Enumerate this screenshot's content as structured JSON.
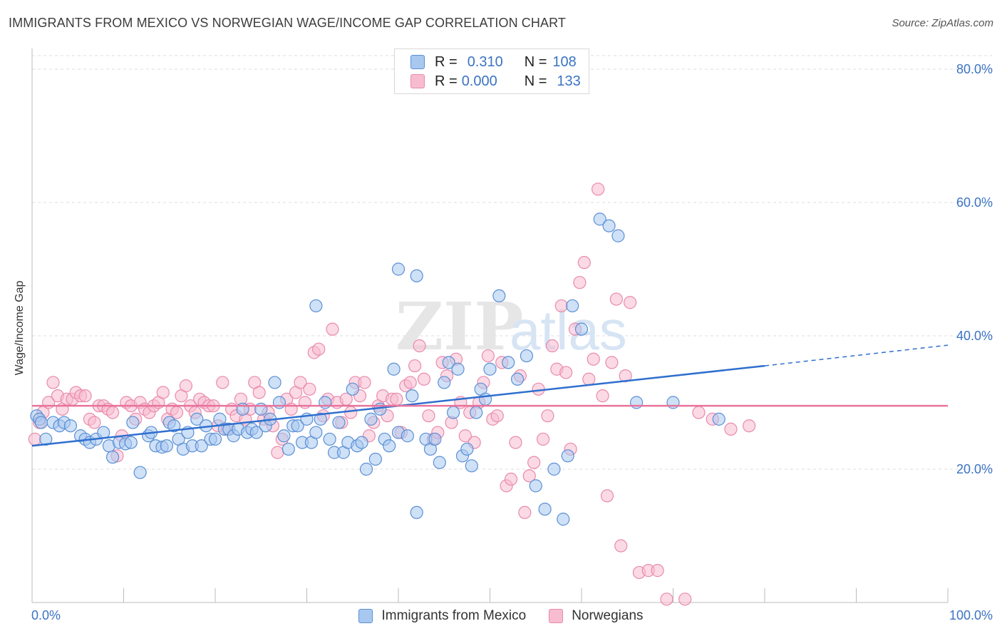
{
  "title": "IMMIGRANTS FROM MEXICO VS NORWEGIAN WAGE/INCOME GAP CORRELATION CHART",
  "source": "Source: ZipAtlas.com",
  "watermark": "ZIPatlas",
  "legend": {
    "rows": [
      {
        "r_label": "R =",
        "r_value": "0.310",
        "n_label": "N =",
        "n_value": "108"
      },
      {
        "r_label": "R =",
        "r_value": "0.000",
        "n_label": "N =",
        "n_value": "133"
      }
    ]
  },
  "bottom_legend": {
    "items": [
      "Immigrants from Mexico",
      "Norwegians"
    ]
  },
  "colors": {
    "blue_fill": "#a8c8f0",
    "blue_stroke": "#5b8fd4",
    "blue_line": "#2f6fcf",
    "pink_fill": "#f7bcd0",
    "pink_stroke": "#e98aac",
    "pink_line": "#e8739c",
    "grid": "#dcdcdc",
    "tick_label": "#3b73c4"
  },
  "chart_data": {
    "type": "scatter",
    "title": "IMMIGRANTS FROM MEXICO VS NORWEGIAN WAGE/INCOME GAP CORRELATION CHART",
    "xlabel": "",
    "ylabel": "Wage/Income Gap",
    "xlim": [
      0,
      100
    ],
    "ylim": [
      0,
      80
    ],
    "x_tick_labels": [
      "0.0%",
      "100.0%"
    ],
    "y_ticks": [
      20,
      40,
      60,
      80
    ],
    "y_tick_labels": [
      "20.0%",
      "40.0%",
      "60.0%",
      "80.0%"
    ],
    "grid": true,
    "legend_position": "top-center",
    "series": [
      {
        "name": "Immigrants from Mexico",
        "color": "#a8c8f0",
        "trend": {
          "x": [
            0,
            80
          ],
          "y": [
            23.5,
            35.5
          ],
          "dashed_to": [
            100,
            38.6
          ]
        },
        "points": [
          [
            0.5,
            28
          ],
          [
            0.8,
            27.5
          ],
          [
            1,
            27
          ],
          [
            1.5,
            24.5
          ],
          [
            2.3,
            27
          ],
          [
            3,
            26.5
          ],
          [
            3.5,
            27
          ],
          [
            4.2,
            26.5
          ],
          [
            5.3,
            25
          ],
          [
            5.8,
            24.5
          ],
          [
            6.3,
            24
          ],
          [
            7,
            24.5
          ],
          [
            7.8,
            25.5
          ],
          [
            8.4,
            23.5
          ],
          [
            8.8,
            21.8
          ],
          [
            9.5,
            24
          ],
          [
            10.2,
            23.8
          ],
          [
            10.8,
            24
          ],
          [
            11,
            27
          ],
          [
            11.8,
            19.5
          ],
          [
            12.7,
            25
          ],
          [
            13,
            25.5
          ],
          [
            13.5,
            23.5
          ],
          [
            14.2,
            23.3
          ],
          [
            14.7,
            23.5
          ],
          [
            15,
            27
          ],
          [
            15.5,
            26.5
          ],
          [
            16,
            24.5
          ],
          [
            16.5,
            23
          ],
          [
            17,
            25.5
          ],
          [
            17.5,
            23.5
          ],
          [
            18,
            27.5
          ],
          [
            18.5,
            23.5
          ],
          [
            19,
            26.5
          ],
          [
            19.5,
            24.5
          ],
          [
            20,
            24.5
          ],
          [
            20.5,
            27.5
          ],
          [
            21,
            26
          ],
          [
            21.5,
            26
          ],
          [
            22,
            25
          ],
          [
            22.5,
            26
          ],
          [
            23,
            29
          ],
          [
            23.5,
            25.5
          ],
          [
            24,
            26
          ],
          [
            24.5,
            25.5
          ],
          [
            25,
            29
          ],
          [
            25.5,
            26.5
          ],
          [
            26,
            27.5
          ],
          [
            26.5,
            33
          ],
          [
            27,
            30
          ],
          [
            27.5,
            25
          ],
          [
            28,
            23
          ],
          [
            28.5,
            26.5
          ],
          [
            29,
            26.5
          ],
          [
            29.5,
            24
          ],
          [
            30,
            27.5
          ],
          [
            30.5,
            24
          ],
          [
            31,
            25.5
          ],
          [
            31.5,
            27.5
          ],
          [
            32,
            30
          ],
          [
            32.5,
            24.5
          ],
          [
            33,
            22.5
          ],
          [
            33.5,
            27
          ],
          [
            34,
            22.5
          ],
          [
            34.5,
            24
          ],
          [
            35,
            32
          ],
          [
            35.5,
            23.5
          ],
          [
            36,
            24
          ],
          [
            36.5,
            20
          ],
          [
            37,
            27.5
          ],
          [
            37.5,
            21.5
          ],
          [
            38,
            29
          ],
          [
            38.5,
            24.5
          ],
          [
            39,
            23.5
          ],
          [
            39.5,
            35
          ],
          [
            40,
            25.5
          ],
          [
            41,
            25
          ],
          [
            41.5,
            31
          ],
          [
            42,
            13.5
          ],
          [
            43,
            24.5
          ],
          [
            43.5,
            23
          ],
          [
            44,
            24.5
          ],
          [
            44.5,
            21
          ],
          [
            45,
            33
          ],
          [
            45.5,
            36
          ],
          [
            46,
            28.5
          ],
          [
            46.5,
            35
          ],
          [
            47,
            22
          ],
          [
            47.5,
            23
          ],
          [
            48,
            20.5
          ],
          [
            48.5,
            28.5
          ],
          [
            49,
            32
          ],
          [
            49.5,
            30.5
          ],
          [
            50,
            35
          ],
          [
            51,
            46
          ],
          [
            52,
            36
          ],
          [
            53,
            33.5
          ],
          [
            54,
            37
          ],
          [
            55,
            17.5
          ],
          [
            56,
            14
          ],
          [
            57,
            20
          ],
          [
            58,
            12.5
          ],
          [
            58.5,
            22
          ],
          [
            59,
            44.5
          ],
          [
            60,
            41
          ],
          [
            62,
            57.5
          ],
          [
            63,
            56.5
          ],
          [
            64,
            55
          ],
          [
            66,
            30
          ],
          [
            70,
            30
          ],
          [
            75,
            27.5
          ],
          [
            31,
            44.5
          ],
          [
            40,
            50
          ],
          [
            42,
            49
          ]
        ]
      },
      {
        "name": "Norwegians",
        "color": "#f7bcd0",
        "trend": {
          "x": [
            0,
            100
          ],
          "y": [
            29.5,
            29.5
          ]
        },
        "points": [
          [
            0.3,
            24.5
          ],
          [
            0.8,
            27
          ],
          [
            1.2,
            28.5
          ],
          [
            1.8,
            30
          ],
          [
            2.3,
            33
          ],
          [
            2.8,
            31
          ],
          [
            3.3,
            29
          ],
          [
            3.8,
            30.5
          ],
          [
            4.4,
            30.5
          ],
          [
            4.8,
            31.5
          ],
          [
            5.3,
            31
          ],
          [
            5.8,
            31
          ],
          [
            6.3,
            27.5
          ],
          [
            6.8,
            27
          ],
          [
            7.3,
            29.5
          ],
          [
            7.8,
            29.5
          ],
          [
            8.3,
            29
          ],
          [
            8.8,
            28.5
          ],
          [
            9.3,
            22
          ],
          [
            9.8,
            25
          ],
          [
            10.3,
            30
          ],
          [
            10.8,
            29.5
          ],
          [
            11.3,
            27.5
          ],
          [
            11.8,
            30
          ],
          [
            12.3,
            29
          ],
          [
            12.8,
            28.5
          ],
          [
            13.3,
            29.5
          ],
          [
            13.8,
            30
          ],
          [
            14.3,
            31.5
          ],
          [
            14.8,
            27.5
          ],
          [
            15.3,
            29
          ],
          [
            15.8,
            28.5
          ],
          [
            16.3,
            31
          ],
          [
            16.8,
            32.5
          ],
          [
            17.3,
            29.5
          ],
          [
            17.8,
            28.5
          ],
          [
            18.3,
            30.5
          ],
          [
            18.8,
            30
          ],
          [
            19.3,
            29.5
          ],
          [
            19.8,
            29.5
          ],
          [
            20.3,
            26.5
          ],
          [
            20.8,
            33
          ],
          [
            21.3,
            26
          ],
          [
            21.8,
            29
          ],
          [
            22.3,
            28
          ],
          [
            22.8,
            30.5
          ],
          [
            23.3,
            27.5
          ],
          [
            23.8,
            29
          ],
          [
            24.3,
            33
          ],
          [
            24.8,
            31.5
          ],
          [
            25.3,
            27.5
          ],
          [
            25.8,
            28.5
          ],
          [
            26.3,
            26.5
          ],
          [
            26.8,
            22.5
          ],
          [
            27.3,
            24.5
          ],
          [
            27.8,
            30.5
          ],
          [
            28.3,
            29
          ],
          [
            28.8,
            31.5
          ],
          [
            29.3,
            33
          ],
          [
            29.8,
            30
          ],
          [
            30.3,
            32
          ],
          [
            30.8,
            37.5
          ],
          [
            31.3,
            38
          ],
          [
            31.8,
            28
          ],
          [
            32.3,
            30.5
          ],
          [
            32.8,
            41
          ],
          [
            33.3,
            30
          ],
          [
            33.8,
            27
          ],
          [
            34.3,
            30.5
          ],
          [
            34.8,
            28.5
          ],
          [
            35.3,
            33
          ],
          [
            35.8,
            31
          ],
          [
            36.3,
            33
          ],
          [
            36.8,
            25
          ],
          [
            37.3,
            27
          ],
          [
            37.8,
            29.5
          ],
          [
            38.3,
            31
          ],
          [
            38.8,
            28
          ],
          [
            39.3,
            30.5
          ],
          [
            39.8,
            30.5
          ],
          [
            40.3,
            25.5
          ],
          [
            40.8,
            32.5
          ],
          [
            41.3,
            33
          ],
          [
            41.8,
            35.5
          ],
          [
            42.3,
            38.5
          ],
          [
            42.8,
            33.5
          ],
          [
            43.3,
            28
          ],
          [
            43.8,
            24.5
          ],
          [
            44.3,
            25.5
          ],
          [
            44.8,
            36
          ],
          [
            45.3,
            34
          ],
          [
            45.8,
            27
          ],
          [
            46.3,
            36.5
          ],
          [
            46.8,
            30
          ],
          [
            47.3,
            25
          ],
          [
            47.8,
            28.5
          ],
          [
            48.3,
            24
          ],
          [
            48.8,
            30
          ],
          [
            49.3,
            33
          ],
          [
            49.8,
            37
          ],
          [
            50.3,
            27.5
          ],
          [
            50.8,
            28
          ],
          [
            51.3,
            36
          ],
          [
            51.8,
            17.5
          ],
          [
            52.3,
            18.5
          ],
          [
            52.8,
            24
          ],
          [
            53.3,
            34
          ],
          [
            53.8,
            13.5
          ],
          [
            54.3,
            19
          ],
          [
            54.8,
            21
          ],
          [
            55.3,
            32
          ],
          [
            55.8,
            24.5
          ],
          [
            56.3,
            28
          ],
          [
            56.8,
            38.5
          ],
          [
            57.3,
            35
          ],
          [
            57.8,
            44.5
          ],
          [
            58.3,
            34.5
          ],
          [
            58.8,
            23
          ],
          [
            59.3,
            41
          ],
          [
            59.8,
            48
          ],
          [
            60.3,
            51
          ],
          [
            60.8,
            33.5
          ],
          [
            61.3,
            36.5
          ],
          [
            61.8,
            62
          ],
          [
            62.3,
            31
          ],
          [
            62.8,
            16
          ],
          [
            63.3,
            36
          ],
          [
            63.8,
            45.5
          ],
          [
            64.3,
            8.5
          ],
          [
            64.8,
            34
          ],
          [
            65.3,
            45
          ],
          [
            66.3,
            4.5
          ],
          [
            67.3,
            4.8
          ],
          [
            68.3,
            4.8
          ],
          [
            69.3,
            0.5
          ],
          [
            71.3,
            0.5
          ],
          [
            72.8,
            28.5
          ],
          [
            74.3,
            27.5
          ],
          [
            76.3,
            26
          ],
          [
            78.3,
            26.5
          ]
        ]
      }
    ]
  }
}
